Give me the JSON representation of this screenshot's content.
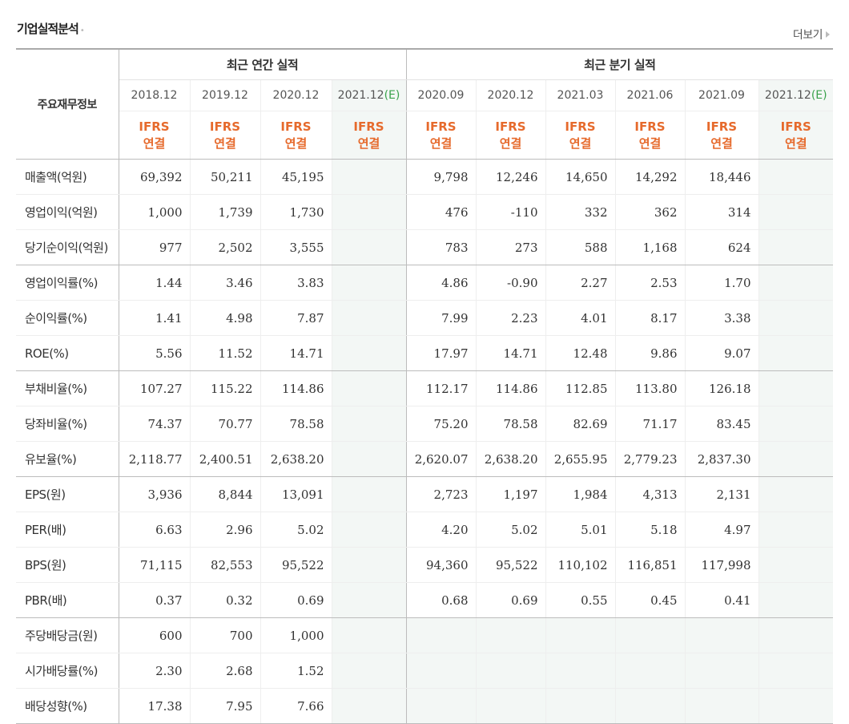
{
  "section_title": "기업실적분석",
  "more_link": "더보기",
  "header": {
    "main_label": "주요재무정보",
    "annual_group": "최근 연간 실적",
    "quarterly_group": "최근 분기 실적",
    "annual_periods": [
      {
        "date": "2018.12",
        "est": ""
      },
      {
        "date": "2019.12",
        "est": ""
      },
      {
        "date": "2020.12",
        "est": ""
      },
      {
        "date": "2021.12",
        "est": "(E)"
      }
    ],
    "quarterly_periods": [
      {
        "date": "2020.09",
        "est": ""
      },
      {
        "date": "2020.12",
        "est": ""
      },
      {
        "date": "2021.03",
        "est": ""
      },
      {
        "date": "2021.06",
        "est": ""
      },
      {
        "date": "2021.09",
        "est": ""
      },
      {
        "date": "2021.12",
        "est": "(E)"
      }
    ],
    "basis_line1": "IFRS",
    "basis_line2": "연결"
  },
  "rows": [
    {
      "label": "매출액(억원)",
      "values": [
        "69,392",
        "50,211",
        "45,195",
        "",
        "9,798",
        "12,246",
        "14,650",
        "14,292",
        "18,446",
        ""
      ]
    },
    {
      "label": "영업이익(억원)",
      "values": [
        "1,000",
        "1,739",
        "1,730",
        "",
        "476",
        "-110",
        "332",
        "362",
        "314",
        ""
      ]
    },
    {
      "label": "당기순이익(억원)",
      "values": [
        "977",
        "2,502",
        "3,555",
        "",
        "783",
        "273",
        "588",
        "1,168",
        "624",
        ""
      ]
    },
    {
      "label": "영업이익률(%)",
      "values": [
        "1.44",
        "3.46",
        "3.83",
        "",
        "4.86",
        "-0.90",
        "2.27",
        "2.53",
        "1.70",
        ""
      ]
    },
    {
      "label": "순이익률(%)",
      "values": [
        "1.41",
        "4.98",
        "7.87",
        "",
        "7.99",
        "2.23",
        "4.01",
        "8.17",
        "3.38",
        ""
      ]
    },
    {
      "label": "ROE(%)",
      "values": [
        "5.56",
        "11.52",
        "14.71",
        "",
        "17.97",
        "14.71",
        "12.48",
        "9.86",
        "9.07",
        ""
      ]
    },
    {
      "label": "부채비율(%)",
      "values": [
        "107.27",
        "115.22",
        "114.86",
        "",
        "112.17",
        "114.86",
        "112.85",
        "113.80",
        "126.18",
        ""
      ]
    },
    {
      "label": "당좌비율(%)",
      "values": [
        "74.37",
        "70.77",
        "78.58",
        "",
        "75.20",
        "78.58",
        "82.69",
        "71.17",
        "83.45",
        ""
      ]
    },
    {
      "label": "유보율(%)",
      "values": [
        "2,118.77",
        "2,400.51",
        "2,638.20",
        "",
        "2,620.07",
        "2,638.20",
        "2,655.95",
        "2,779.23",
        "2,837.30",
        ""
      ]
    },
    {
      "label": "EPS(원)",
      "values": [
        "3,936",
        "8,844",
        "13,091",
        "",
        "2,723",
        "1,197",
        "1,984",
        "4,313",
        "2,131",
        ""
      ]
    },
    {
      "label": "PER(배)",
      "values": [
        "6.63",
        "2.96",
        "5.02",
        "",
        "4.20",
        "5.02",
        "5.01",
        "5.18",
        "4.97",
        ""
      ]
    },
    {
      "label": "BPS(원)",
      "values": [
        "71,115",
        "82,553",
        "95,522",
        "",
        "94,360",
        "95,522",
        "110,102",
        "116,851",
        "117,998",
        ""
      ]
    },
    {
      "label": "PBR(배)",
      "values": [
        "0.37",
        "0.32",
        "0.69",
        "",
        "0.68",
        "0.69",
        "0.55",
        "0.45",
        "0.41",
        ""
      ]
    },
    {
      "label": "주당배당금(원)",
      "values": [
        "600",
        "700",
        "1,000",
        "",
        "",
        "",
        "",
        "",
        "",
        ""
      ]
    },
    {
      "label": "시가배당률(%)",
      "values": [
        "2.30",
        "2.68",
        "1.52",
        "",
        "",
        "",
        "",
        "",
        "",
        ""
      ]
    },
    {
      "label": "배당성향(%)",
      "values": [
        "17.38",
        "7.95",
        "7.66",
        "",
        "",
        "",
        "",
        "",
        "",
        ""
      ]
    }
  ],
  "colors": {
    "negative": "#e0192c",
    "ifrs": "#e66a2c",
    "estimate_label": "#3aa24c",
    "estimate_bg": "#f3f7f5"
  }
}
